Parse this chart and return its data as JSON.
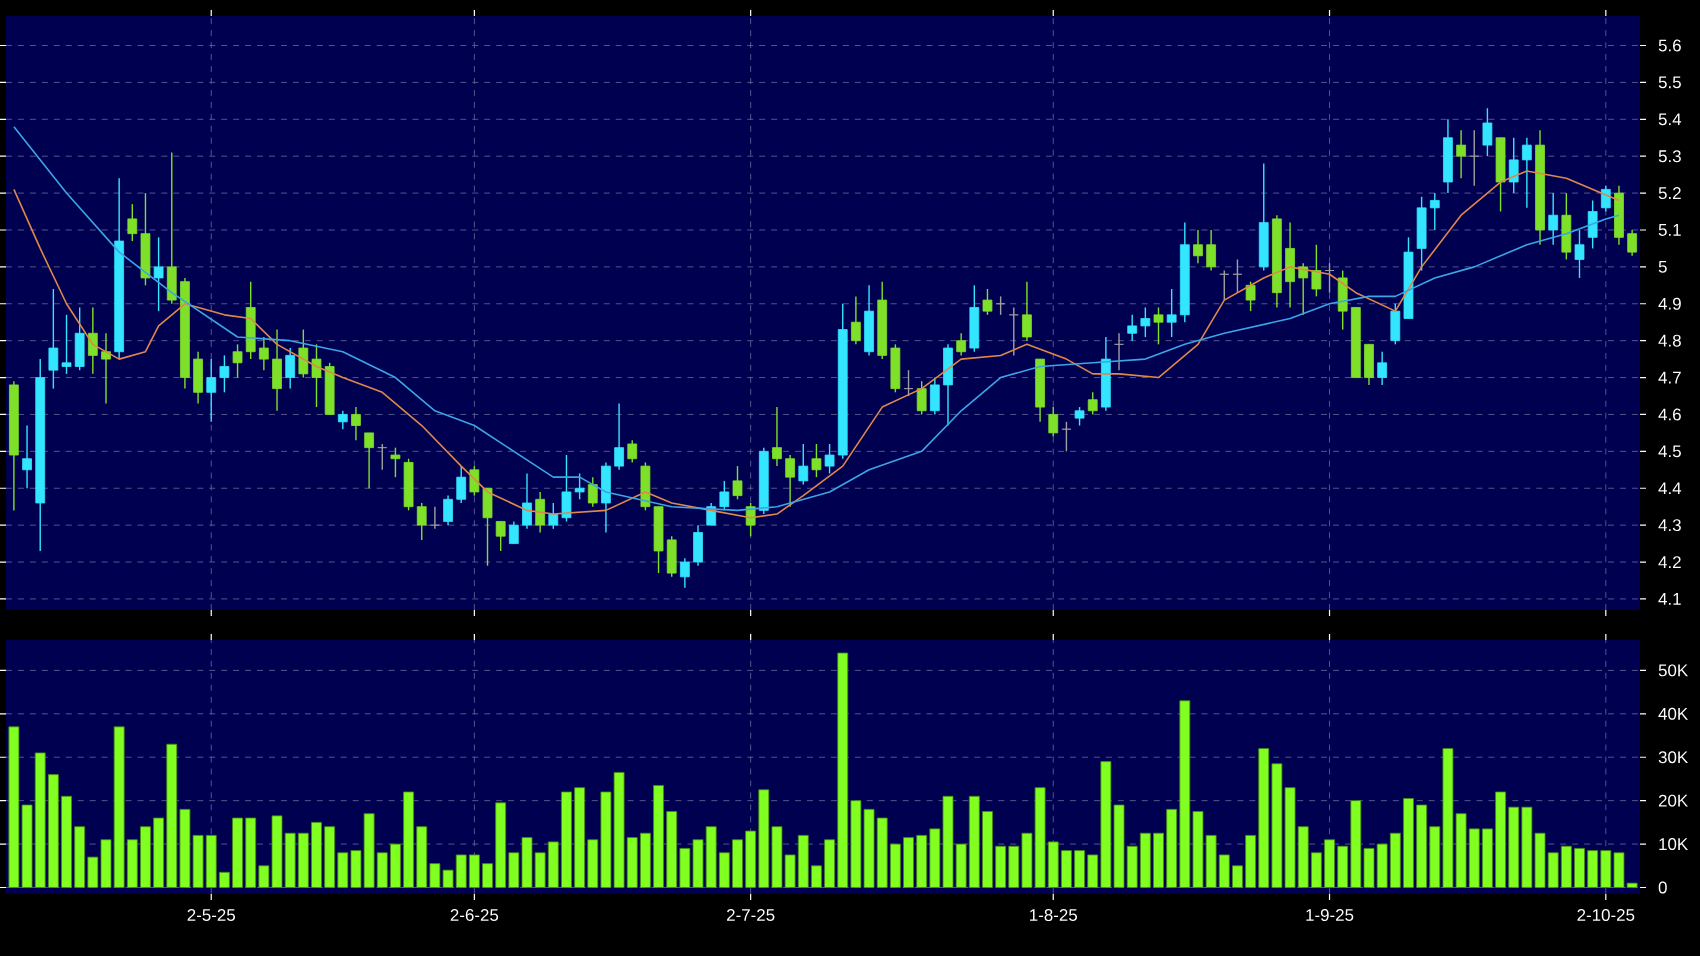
{
  "chart_data": [
    {
      "type": "candlestick",
      "grid": true,
      "categories": [
        null,
        null,
        null,
        null,
        null,
        null,
        null,
        null,
        null,
        null,
        null,
        null,
        null,
        null,
        null,
        null,
        null,
        null,
        null,
        null,
        null,
        null,
        null,
        null,
        null,
        null,
        null,
        null,
        null,
        null,
        null,
        null,
        null,
        null,
        null,
        null,
        null,
        null,
        null,
        null,
        null,
        null,
        null,
        null,
        null,
        null,
        null,
        null,
        null,
        null,
        null,
        null,
        null,
        null,
        null,
        null,
        null,
        null,
        null,
        null,
        null,
        null,
        null,
        null,
        null,
        null,
        null,
        null,
        null,
        null,
        null,
        null,
        null,
        null,
        null,
        null,
        null,
        null,
        null,
        null,
        null,
        null,
        null,
        null,
        null,
        null,
        null,
        null,
        null,
        null,
        null,
        null,
        null,
        null,
        null,
        null,
        null,
        null,
        null,
        null,
        null,
        null,
        null,
        null,
        null,
        null,
        null,
        null,
        null,
        null,
        null,
        null,
        null,
        null,
        null,
        null,
        null,
        null,
        null,
        null,
        null,
        null,
        null,
        null
      ],
      "ylim": [
        4.07,
        5.68
      ],
      "yticks": [
        4.1,
        4.2,
        4.3,
        4.4,
        4.5,
        4.6,
        4.7,
        4.8,
        4.9,
        5,
        5.1,
        5.2,
        5.3,
        5.4,
        5.5,
        5.6
      ],
      "ohlc": [
        [
          4.68,
          4.69,
          4.34,
          4.49
        ],
        [
          4.45,
          4.57,
          4.4,
          4.48
        ],
        [
          4.36,
          4.75,
          4.23,
          4.7
        ],
        [
          4.72,
          4.94,
          4.67,
          4.78
        ],
        [
          4.73,
          4.87,
          4.71,
          4.74
        ],
        [
          4.73,
          4.89,
          4.72,
          4.82
        ],
        [
          4.82,
          4.89,
          4.71,
          4.76
        ],
        [
          4.77,
          4.82,
          4.63,
          4.75
        ],
        [
          4.77,
          5.24,
          4.75,
          5.07
        ],
        [
          5.13,
          5.17,
          5.07,
          5.09
        ],
        [
          5.09,
          5.2,
          4.95,
          4.97
        ],
        [
          4.97,
          5.08,
          4.88,
          5.0
        ],
        [
          5.0,
          5.31,
          4.9,
          4.91
        ],
        [
          4.96,
          4.97,
          4.67,
          4.7
        ],
        [
          4.75,
          4.77,
          4.63,
          4.66
        ],
        [
          4.66,
          4.75,
          4.58,
          4.7
        ],
        [
          4.7,
          4.76,
          4.66,
          4.73
        ],
        [
          4.77,
          4.79,
          4.7,
          4.74
        ],
        [
          4.89,
          4.96,
          4.75,
          4.77
        ],
        [
          4.78,
          4.81,
          4.72,
          4.75
        ],
        [
          4.75,
          4.83,
          4.61,
          4.67
        ],
        [
          4.7,
          4.78,
          4.67,
          4.76
        ],
        [
          4.78,
          4.83,
          4.7,
          4.71
        ],
        [
          4.75,
          4.79,
          4.62,
          4.7
        ],
        [
          4.73,
          4.74,
          4.6,
          4.6
        ],
        [
          4.58,
          4.61,
          4.56,
          4.6
        ],
        [
          4.6,
          4.62,
          4.53,
          4.57
        ],
        [
          4.55,
          4.55,
          4.4,
          4.51
        ],
        [
          4.51,
          4.52,
          4.45,
          4.51
        ],
        [
          4.49,
          4.51,
          4.43,
          4.48
        ],
        [
          4.47,
          4.48,
          4.34,
          4.35
        ],
        [
          4.35,
          4.36,
          4.26,
          4.3
        ],
        [
          4.3,
          4.35,
          4.29,
          4.3
        ],
        [
          4.31,
          4.38,
          4.3,
          4.37
        ],
        [
          4.37,
          4.46,
          4.36,
          4.43
        ],
        [
          4.45,
          4.46,
          4.38,
          4.39
        ],
        [
          4.4,
          4.4,
          4.19,
          4.32
        ],
        [
          4.31,
          4.31,
          4.23,
          4.27
        ],
        [
          4.25,
          4.31,
          4.25,
          4.3
        ],
        [
          4.3,
          4.44,
          4.29,
          4.36
        ],
        [
          4.37,
          4.39,
          4.28,
          4.3
        ],
        [
          4.3,
          4.36,
          4.29,
          4.33
        ],
        [
          4.32,
          4.49,
          4.31,
          4.39
        ],
        [
          4.39,
          4.44,
          4.37,
          4.4
        ],
        [
          4.41,
          4.43,
          4.35,
          4.36
        ],
        [
          4.36,
          4.47,
          4.28,
          4.46
        ],
        [
          4.46,
          4.63,
          4.45,
          4.51
        ],
        [
          4.52,
          4.53,
          4.47,
          4.48
        ],
        [
          4.46,
          4.47,
          4.34,
          4.35
        ],
        [
          4.35,
          4.35,
          4.17,
          4.23
        ],
        [
          4.26,
          4.27,
          4.16,
          4.17
        ],
        [
          4.16,
          4.21,
          4.13,
          4.2
        ],
        [
          4.2,
          4.3,
          4.19,
          4.28
        ],
        [
          4.3,
          4.36,
          4.3,
          4.35
        ],
        [
          4.35,
          4.42,
          4.34,
          4.39
        ],
        [
          4.42,
          4.46,
          4.37,
          4.38
        ],
        [
          4.35,
          4.36,
          4.27,
          4.3
        ],
        [
          4.34,
          4.51,
          4.33,
          4.5
        ],
        [
          4.51,
          4.62,
          4.46,
          4.48
        ],
        [
          4.48,
          4.49,
          4.35,
          4.43
        ],
        [
          4.42,
          4.52,
          4.41,
          4.46
        ],
        [
          4.48,
          4.52,
          4.43,
          4.45
        ],
        [
          4.46,
          4.52,
          4.44,
          4.49
        ],
        [
          4.49,
          4.9,
          4.48,
          4.83
        ],
        [
          4.85,
          4.92,
          4.79,
          4.8
        ],
        [
          4.77,
          4.95,
          4.76,
          4.88
        ],
        [
          4.91,
          4.96,
          4.75,
          4.76
        ],
        [
          4.78,
          4.79,
          4.66,
          4.67
        ],
        [
          4.67,
          4.72,
          4.65,
          4.67
        ],
        [
          4.67,
          4.69,
          4.6,
          4.61
        ],
        [
          4.61,
          4.7,
          4.6,
          4.68
        ],
        [
          4.68,
          4.79,
          4.57,
          4.78
        ],
        [
          4.8,
          4.82,
          4.76,
          4.77
        ],
        [
          4.78,
          4.95,
          4.77,
          4.89
        ],
        [
          4.91,
          4.94,
          4.87,
          4.88
        ],
        [
          4.9,
          4.92,
          4.87,
          4.9
        ],
        [
          4.87,
          4.89,
          4.76,
          4.87
        ],
        [
          4.87,
          4.96,
          4.8,
          4.81
        ],
        [
          4.75,
          4.75,
          4.58,
          4.62
        ],
        [
          4.6,
          4.62,
          4.54,
          4.55
        ],
        [
          4.56,
          4.58,
          4.5,
          4.56
        ],
        [
          4.59,
          4.62,
          4.57,
          4.61
        ],
        [
          4.64,
          4.66,
          4.6,
          4.61
        ],
        [
          4.62,
          4.81,
          4.61,
          4.75
        ],
        [
          4.79,
          4.82,
          4.72,
          4.79
        ],
        [
          4.82,
          4.87,
          4.8,
          4.84
        ],
        [
          4.84,
          4.89,
          4.81,
          4.86
        ],
        [
          4.87,
          4.89,
          4.79,
          4.85
        ],
        [
          4.85,
          4.94,
          4.81,
          4.87
        ],
        [
          4.87,
          5.12,
          4.85,
          5.06
        ],
        [
          5.06,
          5.1,
          5.01,
          5.03
        ],
        [
          5.06,
          5.1,
          4.99,
          5.0
        ],
        [
          4.98,
          4.99,
          4.91,
          4.98
        ],
        [
          4.98,
          5.02,
          4.93,
          4.98
        ],
        [
          4.95,
          4.96,
          4.88,
          4.91
        ],
        [
          5.0,
          5.28,
          4.99,
          5.12
        ],
        [
          5.13,
          5.14,
          4.89,
          4.93
        ],
        [
          5.05,
          5.12,
          4.89,
          4.96
        ],
        [
          5.0,
          5.01,
          4.87,
          4.97
        ],
        [
          4.99,
          5.06,
          4.92,
          4.94
        ],
        [
          4.99,
          5.01,
          4.93,
          4.99
        ],
        [
          4.97,
          4.99,
          4.83,
          4.88
        ],
        [
          4.89,
          4.89,
          4.7,
          4.7
        ],
        [
          4.79,
          4.79,
          4.68,
          4.7
        ],
        [
          4.7,
          4.77,
          4.68,
          4.74
        ],
        [
          4.8,
          4.9,
          4.79,
          4.88
        ],
        [
          4.86,
          5.08,
          4.86,
          5.04
        ],
        [
          5.05,
          5.19,
          4.99,
          5.16
        ],
        [
          5.16,
          5.2,
          5.1,
          5.18
        ],
        [
          5.23,
          5.4,
          5.2,
          5.35
        ],
        [
          5.33,
          5.37,
          5.24,
          5.3
        ],
        [
          5.3,
          5.37,
          5.22,
          5.3
        ],
        [
          5.33,
          5.43,
          5.3,
          5.39
        ],
        [
          5.35,
          5.35,
          5.15,
          5.23
        ],
        [
          5.23,
          5.35,
          5.2,
          5.29
        ],
        [
          5.29,
          5.35,
          5.16,
          5.33
        ],
        [
          5.33,
          5.37,
          5.06,
          5.1
        ],
        [
          5.1,
          5.2,
          5.06,
          5.14
        ],
        [
          5.14,
          5.2,
          5.02,
          5.04
        ],
        [
          5.02,
          5.1,
          4.97,
          5.06
        ],
        [
          5.08,
          5.18,
          5.05,
          5.15
        ],
        [
          5.16,
          5.22,
          5.15,
          5.21
        ],
        [
          5.2,
          5.22,
          5.06,
          5.08
        ],
        [
          5.09,
          5.1,
          5.03,
          5.04
        ]
      ],
      "colors": [
        "#7fe02a",
        "#33e5ff",
        "#33e5ff",
        "#33e5ff",
        "#33e5ff",
        "#33e5ff",
        "#7fe02a",
        "#7fe02a",
        "#33e5ff",
        "#7fe02a",
        "#7fe02a",
        "#33e5ff",
        "#7fe02a",
        "#7fe02a",
        "#7fe02a",
        "#33e5ff",
        "#33e5ff",
        "#7fe02a",
        "#7fe02a",
        "#7fe02a",
        "#7fe02a",
        "#33e5ff",
        "#7fe02a",
        "#7fe02a",
        "#7fe02a",
        "#33e5ff",
        "#7fe02a",
        "#7fe02a",
        "#a0a0a0",
        "#7fe02a",
        "#7fe02a",
        "#7fe02a",
        "#a0a0a0",
        "#33e5ff",
        "#33e5ff",
        "#7fe02a",
        "#7fe02a",
        "#7fe02a",
        "#33e5ff",
        "#33e5ff",
        "#7fe02a",
        "#33e5ff",
        "#33e5ff",
        "#33e5ff",
        "#7fe02a",
        "#33e5ff",
        "#33e5ff",
        "#7fe02a",
        "#7fe02a",
        "#7fe02a",
        "#7fe02a",
        "#33e5ff",
        "#33e5ff",
        "#33e5ff",
        "#33e5ff",
        "#7fe02a",
        "#7fe02a",
        "#33e5ff",
        "#7fe02a",
        "#7fe02a",
        "#33e5ff",
        "#7fe02a",
        "#33e5ff",
        "#33e5ff",
        "#7fe02a",
        "#33e5ff",
        "#7fe02a",
        "#7fe02a",
        "#a0a0a0",
        "#7fe02a",
        "#33e5ff",
        "#33e5ff",
        "#7fe02a",
        "#33e5ff",
        "#7fe02a",
        "#a0a0a0",
        "#a0a0a0",
        "#7fe02a",
        "#7fe02a",
        "#7fe02a",
        "#a0a0a0",
        "#33e5ff",
        "#7fe02a",
        "#33e5ff",
        "#a0a0a0",
        "#33e5ff",
        "#33e5ff",
        "#7fe02a",
        "#33e5ff",
        "#33e5ff",
        "#7fe02a",
        "#7fe02a",
        "#a0a0a0",
        "#a0a0a0",
        "#7fe02a",
        "#33e5ff",
        "#7fe02a",
        "#7fe02a",
        "#7fe02a",
        "#7fe02a",
        "#a0a0a0",
        "#7fe02a",
        "#7fe02a",
        "#7fe02a",
        "#33e5ff",
        "#33e5ff",
        "#33e5ff",
        "#33e5ff",
        "#33e5ff",
        "#33e5ff",
        "#7fe02a",
        "#a0a0a0",
        "#33e5ff",
        "#7fe02a",
        "#33e5ff",
        "#33e5ff",
        "#7fe02a",
        "#33e5ff",
        "#7fe02a",
        "#33e5ff",
        "#33e5ff",
        "#33e5ff",
        "#7fe02a",
        "#7fe02a"
      ],
      "series": [
        {
          "type": "line",
          "color": "#e0874a",
          "values": [
            5.21,
            null,
            5.05,
            null,
            4.9,
            null,
            4.79,
            null,
            4.75,
            null,
            4.77,
            4.84,
            null,
            4.9,
            null,
            null,
            4.87,
            null,
            4.86,
            null,
            4.79,
            null,
            null,
            4.73,
            null,
            4.7,
            null,
            null,
            4.66,
            null,
            null,
            4.57,
            null,
            null,
            4.46,
            null,
            4.39,
            null,
            null,
            4.34,
            null,
            4.33,
            null,
            null,
            null,
            4.34,
            null,
            null,
            4.39,
            null,
            4.36,
            null,
            null,
            4.34,
            null,
            null,
            4.32,
            null,
            4.33,
            null,
            4.38,
            null,
            null,
            4.46,
            null,
            null,
            4.62,
            null,
            null,
            4.67,
            null,
            null,
            4.75,
            null,
            null,
            4.76,
            null,
            4.79,
            null,
            null,
            4.75,
            null,
            4.71,
            null,
            4.71,
            null,
            null,
            4.7,
            null,
            null,
            4.79,
            null,
            4.91,
            null,
            null,
            4.97,
            null,
            5.0,
            null,
            null,
            4.98,
            null,
            4.93,
            null,
            null,
            4.88,
            null,
            5.0,
            null,
            null,
            5.14,
            null,
            null,
            5.23,
            null,
            5.26,
            null,
            null,
            5.24,
            null,
            5.21,
            null,
            5.18,
            null
          ]
        },
        {
          "type": "line",
          "color": "#3aa6e6",
          "values": [
            5.38,
            null,
            null,
            null,
            5.2,
            null,
            null,
            null,
            5.04,
            null,
            null,
            null,
            4.93,
            null,
            null,
            null,
            null,
            4.81,
            null,
            null,
            null,
            4.8,
            null,
            null,
            null,
            4.77,
            null,
            null,
            null,
            4.7,
            null,
            null,
            4.61,
            null,
            null,
            4.57,
            null,
            null,
            4.5,
            null,
            null,
            4.43,
            null,
            4.43,
            null,
            4.39,
            null,
            null,
            null,
            null,
            4.35,
            null,
            null,
            null,
            null,
            4.34,
            null,
            null,
            4.35,
            null,
            null,
            null,
            4.39,
            null,
            null,
            4.45,
            null,
            null,
            null,
            4.5,
            null,
            null,
            4.61,
            null,
            null,
            4.7,
            null,
            null,
            4.73,
            null,
            null,
            null,
            4.74,
            null,
            null,
            null,
            4.75,
            null,
            null,
            4.79,
            null,
            null,
            4.82,
            null,
            null,
            null,
            null,
            4.86,
            null,
            null,
            4.9,
            null,
            null,
            4.92,
            null,
            4.92,
            null,
            null,
            4.97,
            null,
            null,
            5.0,
            null,
            null,
            null,
            5.06,
            null,
            null,
            5.09,
            null,
            null,
            5.13,
            5.14,
            null
          ]
        }
      ]
    },
    {
      "type": "bar",
      "grid": true,
      "color": "#80ff20",
      "categories": [
        null,
        null,
        null,
        null,
        null,
        null,
        null,
        null,
        null,
        null,
        null,
        null,
        null,
        null,
        null,
        "2-5-25",
        null,
        null,
        null,
        null,
        null,
        null,
        null,
        null,
        null,
        null,
        null,
        null,
        null,
        null,
        null,
        null,
        null,
        null,
        null,
        "2-6-25",
        null,
        null,
        null,
        null,
        null,
        null,
        null,
        null,
        null,
        null,
        null,
        null,
        null,
        null,
        null,
        null,
        null,
        null,
        null,
        null,
        "2-7-25",
        null,
        null,
        null,
        null,
        null,
        null,
        null,
        null,
        null,
        null,
        null,
        null,
        null,
        null,
        null,
        null,
        null,
        null,
        null,
        null,
        null,
        null,
        "1-8-25",
        null,
        null,
        null,
        null,
        null,
        null,
        null,
        null,
        null,
        null,
        null,
        null,
        null,
        null,
        null,
        null,
        null,
        null,
        null,
        null,
        "1-9-25",
        null,
        null,
        null,
        null,
        null,
        null,
        null,
        null,
        null,
        null,
        null,
        null,
        null,
        null,
        null,
        null,
        null,
        null,
        null,
        null,
        "2-10-25",
        null,
        null
      ],
      "ylim": [
        -1.5,
        57
      ],
      "yticks": [
        0,
        {
          "value": 10,
          "label": "10K"
        },
        {
          "value": 20,
          "label": "20K"
        },
        {
          "value": 30,
          "label": "30K"
        },
        {
          "value": 40,
          "label": "40K"
        },
        {
          "value": 50,
          "label": "50K"
        }
      ],
      "values": [
        37,
        19,
        31,
        26,
        21,
        14,
        7,
        11,
        37,
        11,
        14,
        16,
        33,
        18,
        12,
        12,
        3.5,
        16,
        16,
        5,
        16.5,
        12.5,
        12.5,
        15,
        14,
        8,
        8.5,
        17,
        8,
        10,
        22,
        14,
        5.5,
        4,
        7.5,
        7.5,
        5.5,
        19.5,
        8,
        11.5,
        8,
        10.5,
        22,
        23,
        11,
        22,
        26.5,
        11.5,
        12.5,
        23.5,
        17.5,
        9,
        11,
        14,
        8,
        11,
        13,
        22.5,
        14,
        7.5,
        12,
        5,
        11,
        54,
        20,
        18,
        16,
        10,
        11.5,
        12,
        13.5,
        21,
        10,
        21,
        17.5,
        9.5,
        9.5,
        12.5,
        23,
        10.5,
        8.5,
        8.5,
        7.5,
        29,
        19,
        9.5,
        12.5,
        12.5,
        18,
        43,
        17.5,
        12,
        7.5,
        5,
        12,
        32,
        28.5,
        23,
        14,
        8,
        11,
        9.5,
        20,
        9,
        10,
        12.5,
        20.5,
        19,
        14,
        32,
        17,
        13.5,
        13.5,
        22,
        18.5,
        18.5,
        12.5,
        8,
        9.5,
        9,
        8.5,
        8.5,
        8,
        1
      ]
    }
  ]
}
